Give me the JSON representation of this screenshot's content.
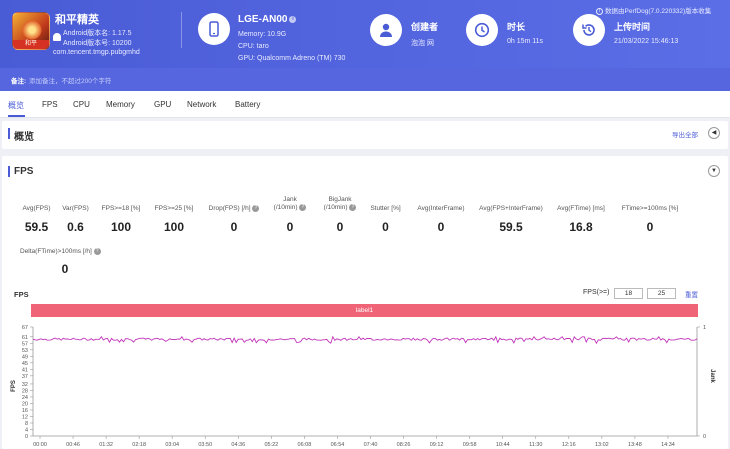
{
  "app": {
    "name": "和平精英",
    "icon_tag": "和平",
    "version_name": "Android版本名: 1.17.5",
    "version_code": "Android版本号: 10200",
    "package": "com.tencent.tmgp.pubgmhd"
  },
  "device": {
    "model": "LGE-AN00",
    "memory": "Memory: 10.9G",
    "cpu": "CPU: taro",
    "gpu": "GPU: Qualcomm Adreno (TM) 730"
  },
  "creator": {
    "label": "创建者",
    "value": "泡泡 网"
  },
  "duration": {
    "label": "时长",
    "value": "0h 15m 11s"
  },
  "upload": {
    "label": "上传时间",
    "value": "21/03/2022 15:46:13"
  },
  "perfdog_note": "数据由PerfDog(7.0.220332)版本收集",
  "note": {
    "label": "备注:",
    "placeholder": "添加备注，不超过200个字符"
  },
  "tabs": [
    "概览",
    "FPS",
    "CPU",
    "Memory",
    "GPU",
    "Network",
    "Battery"
  ],
  "overview": {
    "title": "概览",
    "export": "导出全部"
  },
  "fps_section": {
    "title": "FPS",
    "metrics": [
      {
        "label": "Avg(FPS)",
        "value": "59.5"
      },
      {
        "label": "Var(FPS)",
        "value": "0.6"
      },
      {
        "label": "FPS>=18 [%]",
        "value": "100"
      },
      {
        "label": "FPS>=25 [%]",
        "value": "100"
      },
      {
        "label": "Drop(FPS) [/h]",
        "value": "0"
      },
      {
        "label": "Jank\n(/10min)",
        "value": "0"
      },
      {
        "label": "BigJank\n(/10min)",
        "value": "0"
      },
      {
        "label": "Stutter [%]",
        "value": "0"
      },
      {
        "label": "Avg(InterFrame)",
        "value": "0"
      },
      {
        "label": "Avg(FPS+InterFrame)",
        "value": "59.5"
      },
      {
        "label": "Avg(FTime) [ms]",
        "value": "16.8"
      },
      {
        "label": "FTime>=100ms [%]",
        "value": "0"
      },
      {
        "label": "Delta(FTime)>100ms [/h]",
        "value": "0"
      }
    ],
    "chart_title": "FPS",
    "fps_threshold_label": "FPS(>=)",
    "fps_threshold_1": "18",
    "fps_threshold_2": "25",
    "reset": "重置",
    "label_bar": "label1"
  },
  "chart_data": {
    "type": "line",
    "ylabel": "FPS",
    "y2label": "Jank",
    "ylim": [
      0,
      67
    ],
    "y_ticks": [
      0,
      4,
      8,
      12,
      16,
      20,
      24,
      28,
      32,
      37,
      41,
      45,
      49,
      53,
      57,
      61,
      67
    ],
    "y2_ticks": [
      0,
      1
    ],
    "x_ticks": [
      "00:00",
      "00:46",
      "01:32",
      "02:18",
      "03:04",
      "03:50",
      "04:36",
      "05:22",
      "06:08",
      "06:54",
      "07:40",
      "08:26",
      "09:12",
      "09:58",
      "10:44",
      "11:30",
      "12:16",
      "13:02",
      "13:48",
      "14:34"
    ],
    "series": [
      {
        "color": "#c033b8",
        "mean": 59.5,
        "min": 57,
        "max": 61
      }
    ],
    "duration_seconds": 911
  },
  "colors": {
    "accent": "#4a5bd6",
    "label_bar": "#f06478",
    "series": "#c033b8"
  }
}
